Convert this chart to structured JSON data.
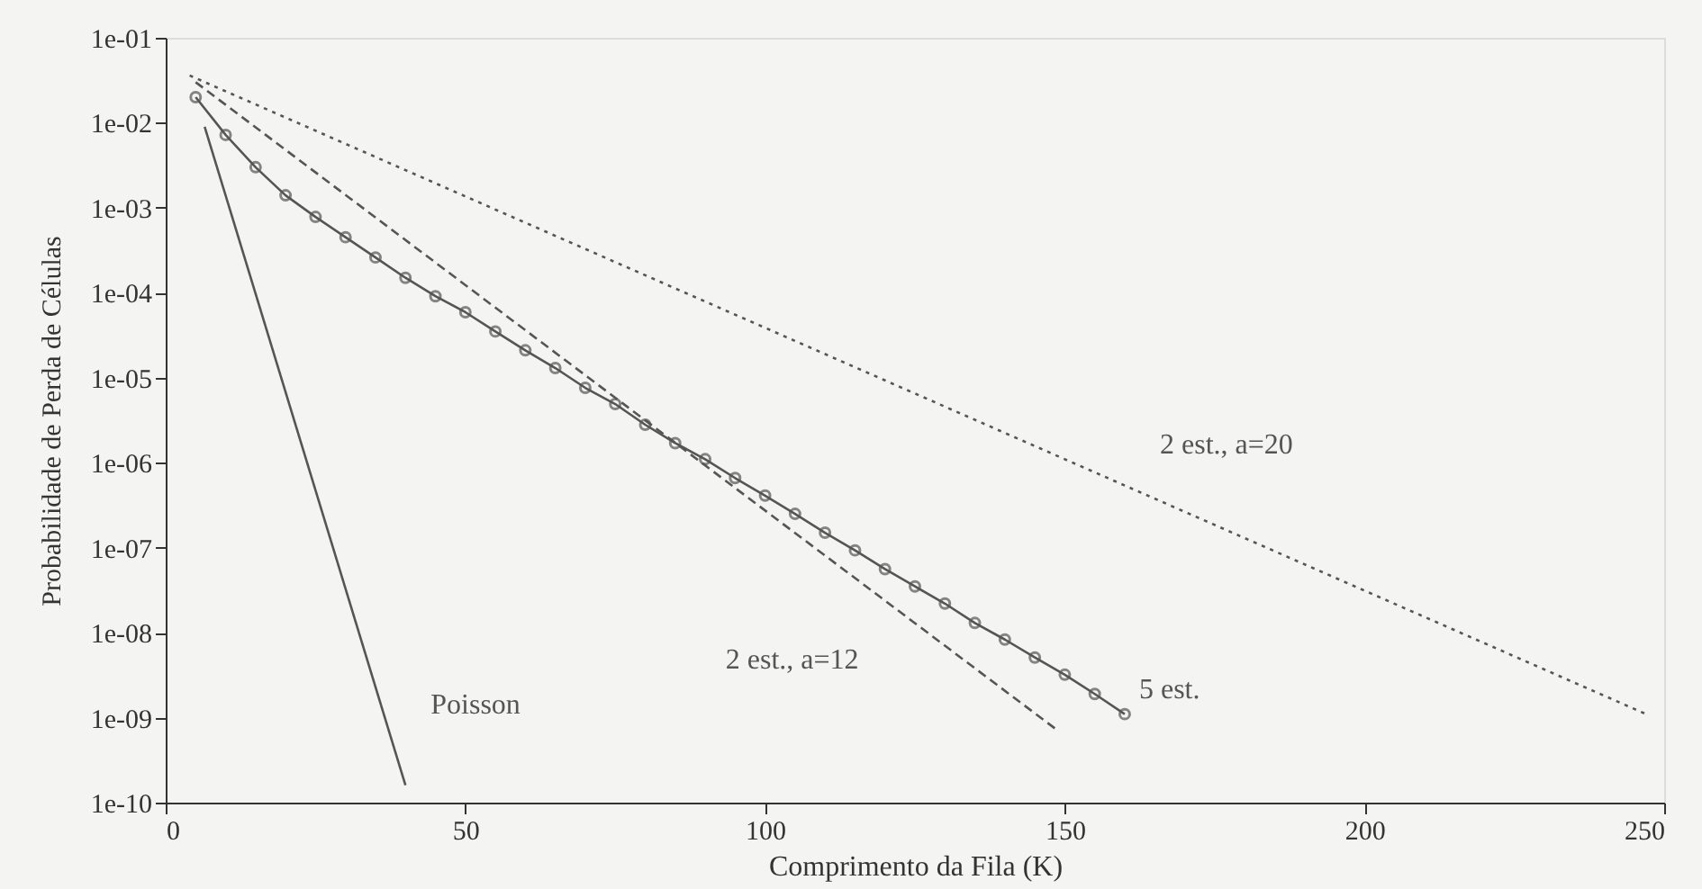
{
  "chart_data": {
    "type": "line",
    "xlabel": "Comprimento da Fila (K)",
    "ylabel": "Probabilidade de Perda de Células",
    "log": "y",
    "grid": false,
    "xlim": [
      0,
      250
    ],
    "xticks": [
      0,
      50,
      100,
      150,
      200,
      250
    ],
    "ylim": [
      1e-10,
      0.1
    ],
    "yticks": [
      {
        "value": 1e-10,
        "label": "1e-10"
      },
      {
        "value": 1e-09,
        "label": "1e-09"
      },
      {
        "value": 1e-08,
        "label": "1e-08"
      },
      {
        "value": 1e-07,
        "label": "1e-07"
      },
      {
        "value": 1e-06,
        "label": "1e-06"
      },
      {
        "value": 1e-05,
        "label": "1e-05"
      },
      {
        "value": 0.0001,
        "label": "1e-04"
      },
      {
        "value": 0.001,
        "label": "1e-03"
      },
      {
        "value": 0.01,
        "label": "1e-02"
      },
      {
        "value": 0.1,
        "label": "1e-01"
      }
    ],
    "series": [
      {
        "name": "Poisson",
        "color": "#555555",
        "line_style": "solid",
        "marker": "none",
        "x": [
          6.5,
          40
        ],
        "values": [
          0.009,
          1.6e-10
        ]
      },
      {
        "name": "2 est., a=12",
        "color": "#555555",
        "line_style": "dashed",
        "marker": "none",
        "x": [
          5,
          149
        ],
        "values": [
          0.03,
          6.9e-10
        ]
      },
      {
        "name": "2 est., a=20",
        "color": "#555555",
        "line_style": "dotted",
        "marker": "none",
        "x": [
          4,
          247
        ],
        "values": [
          0.036,
          1.1e-09
        ]
      },
      {
        "name": "5 est.",
        "color": "#555555",
        "line_style": "solid",
        "marker": "circle",
        "x": [
          5,
          10,
          15,
          20,
          25,
          30,
          35,
          40,
          45,
          50,
          55,
          60,
          65,
          70,
          75,
          80,
          85,
          90,
          95,
          100,
          105,
          110,
          115,
          120,
          125,
          130,
          135,
          140,
          145,
          150,
          155,
          160
        ],
        "values": [
          0.02,
          0.0072,
          0.003,
          0.0014,
          0.00078,
          0.00045,
          0.00026,
          0.00015,
          9.1e-05,
          5.9e-05,
          3.5e-05,
          2.1e-05,
          1.3e-05,
          7.6e-06,
          4.9e-06,
          2.8e-06,
          1.7e-06,
          1.1e-06,
          6.6e-07,
          4.1e-07,
          2.5e-07,
          1.5e-07,
          9.3e-08,
          5.6e-08,
          3.5e-08,
          2.2e-08,
          1.3e-08,
          8.3e-09,
          5.1e-09,
          3.2e-09,
          1.9e-09,
          1.1e-09
        ]
      }
    ]
  }
}
